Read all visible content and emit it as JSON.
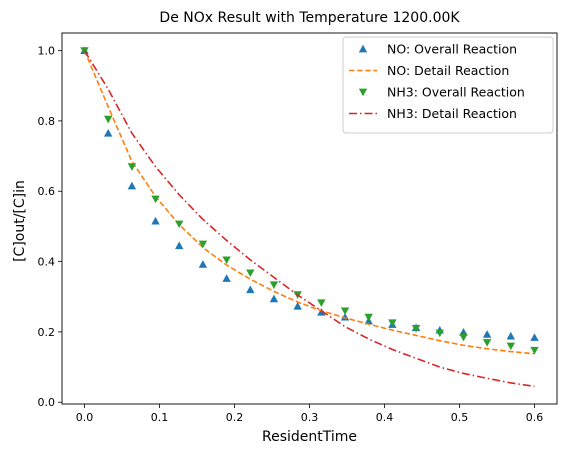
{
  "chart_data": {
    "type": "line",
    "title": "De NOx Result with Temperature 1200.00K",
    "xlabel": "ResidentTime",
    "ylabel": "[C]out/[C]in",
    "xlim": [
      -0.03,
      0.63
    ],
    "ylim": [
      -0.005,
      1.05
    ],
    "x_ticks": [
      0.0,
      0.1,
      0.2,
      0.3,
      0.4,
      0.5,
      0.6
    ],
    "x_tick_labels": [
      "0.0",
      "0.1",
      "0.2",
      "0.3",
      "0.4",
      "0.5",
      "0.6"
    ],
    "y_ticks": [
      0.0,
      0.2,
      0.4,
      0.6,
      0.8,
      1.0
    ],
    "y_tick_labels": [
      "0.0",
      "0.2",
      "0.4",
      "0.6",
      "0.8",
      "1.0"
    ],
    "grid": false,
    "legend_position": "top-right",
    "colors": {
      "blue": "#1f77b4",
      "orange": "#ff7f0e",
      "green": "#2ca02c",
      "red": "#d62728"
    },
    "series": [
      {
        "name": "NO: Overall Reaction",
        "style": "marker",
        "marker": "triangle-up",
        "color": "#1f77b4",
        "x": [
          0.0,
          0.0316,
          0.0632,
          0.0947,
          0.1263,
          0.1579,
          0.1895,
          0.2211,
          0.2526,
          0.2842,
          0.3158,
          0.3474,
          0.3789,
          0.4105,
          0.4421,
          0.4737,
          0.5053,
          0.5368,
          0.5684,
          0.6
        ],
        "y": [
          1.0,
          0.765,
          0.615,
          0.515,
          0.445,
          0.392,
          0.352,
          0.32,
          0.294,
          0.273,
          0.256,
          0.242,
          0.231,
          0.221,
          0.212,
          0.205,
          0.199,
          0.193,
          0.188,
          0.184
        ]
      },
      {
        "name": "NO: Detail Reaction",
        "style": "dashed",
        "color": "#ff7f0e",
        "x": [
          0.0,
          0.0316,
          0.0632,
          0.0947,
          0.1263,
          0.1579,
          0.1895,
          0.2211,
          0.2526,
          0.2842,
          0.3158,
          0.3474,
          0.3789,
          0.4105,
          0.4421,
          0.4737,
          0.5053,
          0.5368,
          0.5684,
          0.6
        ],
        "y": [
          1.0,
          0.84,
          0.685,
          0.585,
          0.505,
          0.44,
          0.39,
          0.35,
          0.315,
          0.285,
          0.26,
          0.24,
          0.222,
          0.205,
          0.19,
          0.175,
          0.162,
          0.152,
          0.144,
          0.138
        ]
      },
      {
        "name": "NH3: Overall Reaction",
        "style": "marker",
        "marker": "triangle-down",
        "color": "#2ca02c",
        "x": [
          0.0,
          0.0316,
          0.0632,
          0.0947,
          0.1263,
          0.1579,
          0.1895,
          0.2211,
          0.2526,
          0.2842,
          0.3158,
          0.3474,
          0.3789,
          0.4105,
          0.4421,
          0.4737,
          0.5053,
          0.5368,
          0.5684,
          0.6
        ],
        "y": [
          1.0,
          0.805,
          0.67,
          0.578,
          0.507,
          0.45,
          0.405,
          0.368,
          0.334,
          0.306,
          0.283,
          0.26,
          0.242,
          0.226,
          0.21,
          0.197,
          0.185,
          0.17,
          0.16,
          0.148
        ]
      },
      {
        "name": "NH3: Detail Reaction",
        "style": "dashdot",
        "color": "#d62728",
        "x": [
          0.0,
          0.0316,
          0.0632,
          0.0947,
          0.1263,
          0.1579,
          0.1895,
          0.2211,
          0.2526,
          0.2842,
          0.3158,
          0.3474,
          0.3789,
          0.4105,
          0.4421,
          0.4737,
          0.5053,
          0.5368,
          0.5684,
          0.6
        ],
        "y": [
          1.0,
          0.89,
          0.765,
          0.67,
          0.59,
          0.52,
          0.46,
          0.405,
          0.355,
          0.305,
          0.26,
          0.215,
          0.18,
          0.15,
          0.125,
          0.1,
          0.082,
          0.068,
          0.055,
          0.045
        ]
      }
    ]
  }
}
